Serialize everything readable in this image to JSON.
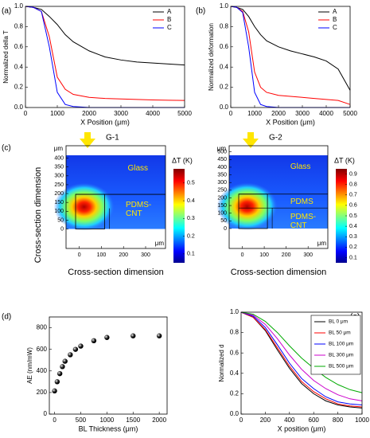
{
  "chart_data": [
    {
      "type": "line",
      "label": "(a)",
      "xlabel": "X Position (μm)",
      "ylabel": "Normalized della T",
      "x": [
        0,
        250,
        500,
        750,
        1000,
        1250,
        1500,
        2000,
        2500,
        3000,
        3500,
        4000,
        4500,
        5000
      ],
      "series": [
        {
          "name": "A",
          "color": "#000000",
          "values": [
            1,
            0.99,
            0.97,
            0.9,
            0.82,
            0.72,
            0.65,
            0.56,
            0.5,
            0.47,
            0.45,
            0.44,
            0.43,
            0.42
          ]
        },
        {
          "name": "B",
          "color": "#ff0000",
          "values": [
            1,
            0.99,
            0.95,
            0.7,
            0.3,
            0.18,
            0.13,
            0.1,
            0.09,
            0.085,
            0.08,
            0.075,
            0.072,
            0.07
          ]
        },
        {
          "name": "C",
          "color": "#0000ff",
          "values": [
            1,
            0.99,
            0.95,
            0.6,
            0.15,
            0.03,
            0.01,
            0,
            0,
            0,
            0,
            0,
            0,
            0
          ]
        }
      ],
      "xlim": [
        0,
        5000
      ],
      "xticks": [
        0,
        1000,
        2000,
        3000,
        4000,
        5000
      ],
      "ylim": [
        0,
        1.0
      ],
      "yticks": [
        {
          "value": 0,
          "label": "0.0"
        },
        0.2,
        0.4,
        0.6,
        0.8,
        {
          "value": 1.0,
          "label": "1.0"
        }
      ],
      "legend": "upper right"
    },
    {
      "type": "line",
      "label": "(b)",
      "xlabel": "X Position (μm)",
      "ylabel": "Normalized deformation",
      "x": [
        0,
        250,
        500,
        750,
        1000,
        1250,
        1500,
        2000,
        2500,
        3000,
        3500,
        4000,
        4500,
        5000
      ],
      "series": [
        {
          "name": "A",
          "color": "#000000",
          "values": [
            1,
            0.99,
            0.97,
            0.9,
            0.8,
            0.72,
            0.66,
            0.6,
            0.56,
            0.53,
            0.5,
            0.46,
            0.38,
            0.17
          ]
        },
        {
          "name": "B",
          "color": "#ff0000",
          "values": [
            1,
            0.99,
            0.95,
            0.75,
            0.35,
            0.2,
            0.15,
            0.12,
            0.11,
            0.1,
            0.09,
            0.08,
            0.07,
            0.03
          ]
        },
        {
          "name": "C",
          "color": "#0000ff",
          "values": [
            1,
            0.99,
            0.94,
            0.6,
            0.15,
            0.03,
            0.01,
            0,
            0,
            0,
            0,
            0,
            0,
            0
          ]
        }
      ],
      "xlim": [
        0,
        5000
      ],
      "xticks": [
        0,
        1000,
        2000,
        3000,
        4000,
        5000
      ],
      "ylim": [
        0,
        1.0
      ],
      "yticks": [
        {
          "value": 0,
          "label": "0.0"
        },
        0.2,
        0.4,
        0.6,
        0.8,
        {
          "value": 1.0,
          "label": "1.0"
        }
      ],
      "legend": "upper right"
    },
    {
      "type": "heatmap",
      "label": "(c)",
      "title": "G-1",
      "xlabel": "Cross-section dimension",
      "ylabel": "Cross-section dimension",
      "x_unit": "μm",
      "y_unit": "μm",
      "regions": [
        "Glass",
        "PDMS-CNT"
      ],
      "xlim": [
        -60,
        390
      ],
      "xticks": [
        0,
        100,
        200,
        300
      ],
      "ylim": [
        -110,
        470
      ],
      "yticks": [
        0,
        50,
        100,
        150,
        200,
        250,
        300,
        350,
        400
      ],
      "colorbar_label": "ΔT (K)",
      "colorbar_lim": [
        0.05,
        0.58
      ],
      "colorbar_ticks": [
        0.1,
        0.2,
        0.3,
        0.4,
        0.5
      ]
    },
    {
      "type": "heatmap",
      "title": "G-2",
      "xlabel": "Cross-section dimension",
      "x_unit": "μm",
      "y_unit": "μm",
      "regions": [
        "Glass",
        "PDMS",
        "PDMS-CNT"
      ],
      "xlim": [
        -60,
        390
      ],
      "xticks": [
        0,
        100,
        200,
        300
      ],
      "ylim": [
        -130,
        540
      ],
      "yticks": [
        0,
        50,
        100,
        150,
        200,
        250,
        300,
        350,
        400,
        450,
        500
      ],
      "colorbar_label": "ΔT (K)",
      "colorbar_lim": [
        0.05,
        0.95
      ],
      "colorbar_ticks": [
        0.1,
        0.2,
        0.3,
        0.4,
        0.5,
        0.6,
        0.7,
        0.8,
        0.9
      ]
    },
    {
      "type": "scatter",
      "label": "(d)",
      "xlabel": "BL Thickness (μm)",
      "ylabel": "AE (nm/mW)",
      "x": [
        0,
        50,
        100,
        150,
        200,
        300,
        400,
        500,
        750,
        1000,
        1500,
        2000
      ],
      "values": [
        215,
        300,
        375,
        440,
        490,
        550,
        600,
        630,
        680,
        710,
        725,
        725
      ],
      "xlim": [
        -100,
        2150
      ],
      "xticks": [
        0,
        500,
        1000,
        1500,
        2000
      ],
      "ylim": [
        0,
        900
      ],
      "yticks": [
        0,
        200,
        400,
        600,
        800
      ]
    },
    {
      "type": "line",
      "label": "(e)",
      "xlabel": "X position (μm)",
      "ylabel": "Normalized d",
      "x": [
        0,
        100,
        200,
        300,
        400,
        500,
        600,
        700,
        800,
        900,
        1000
      ],
      "series": [
        {
          "name": "BL 0 μm",
          "color": "#000000",
          "values": [
            1,
            0.95,
            0.82,
            0.63,
            0.45,
            0.3,
            0.2,
            0.13,
            0.09,
            0.07,
            0.06
          ]
        },
        {
          "name": "BL 50 μm",
          "color": "#ff0000",
          "values": [
            1,
            0.95,
            0.83,
            0.65,
            0.47,
            0.32,
            0.22,
            0.15,
            0.1,
            0.08,
            0.07
          ]
        },
        {
          "name": "BL 100 μm",
          "color": "#0000ff",
          "values": [
            1,
            0.96,
            0.85,
            0.68,
            0.5,
            0.35,
            0.25,
            0.17,
            0.12,
            0.1,
            0.09
          ]
        },
        {
          "name": "BL 300 μm",
          "color": "#cc00cc",
          "values": [
            1,
            0.97,
            0.88,
            0.74,
            0.58,
            0.44,
            0.33,
            0.25,
            0.19,
            0.15,
            0.13
          ]
        },
        {
          "name": "BL 500 μm",
          "color": "#00aa00",
          "values": [
            1,
            0.98,
            0.91,
            0.8,
            0.67,
            0.55,
            0.45,
            0.36,
            0.29,
            0.24,
            0.21
          ]
        }
      ],
      "xlim": [
        0,
        1000
      ],
      "xticks": [
        0,
        200,
        400,
        600,
        800,
        1000
      ],
      "ylim": [
        0,
        1.0
      ],
      "yticks": [
        {
          "value": 0,
          "label": "0.0"
        },
        0.2,
        0.4,
        0.6,
        0.8,
        {
          "value": 1.0,
          "label": "1.0"
        }
      ],
      "legend": "upper right box"
    }
  ]
}
